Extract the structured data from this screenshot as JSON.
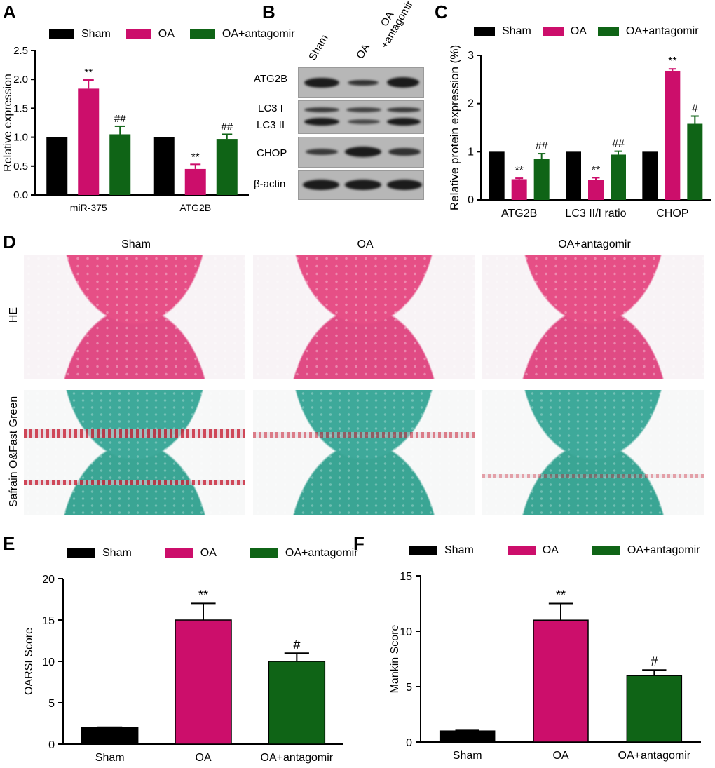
{
  "panels": {
    "A": "A",
    "B": "B",
    "C": "C",
    "D": "D",
    "E": "E",
    "F": "F"
  },
  "colors": {
    "sham": "#000000",
    "oa": "#cc0e6b",
    "antagomir": "#0f6416"
  },
  "legend": {
    "sham": "Sham",
    "oa": "OA",
    "antagomir": "OA+antagomir"
  },
  "chart_data": [
    {
      "id": "A",
      "type": "bar",
      "ylabel": "Relative expression",
      "xlabel": "",
      "ylim": [
        0,
        2.5
      ],
      "yticks": [
        "0.0",
        "0.5",
        "1.0",
        "1.5",
        "2.0",
        "2.5"
      ],
      "categories": [
        "miR-375",
        "ATG2B"
      ],
      "series": [
        {
          "name": "Sham",
          "values": [
            1.0,
            1.0
          ],
          "errors": [
            0,
            0
          ],
          "marks": [
            "",
            ""
          ]
        },
        {
          "name": "OA",
          "values": [
            1.84,
            0.45
          ],
          "errors": [
            0.15,
            0.08
          ],
          "marks": [
            "**",
            "**"
          ]
        },
        {
          "name": "OA+antagomir",
          "values": [
            1.05,
            0.97
          ],
          "errors": [
            0.14,
            0.08
          ],
          "marks": [
            "##",
            "##"
          ]
        }
      ]
    },
    {
      "id": "C",
      "type": "bar",
      "ylabel": "Relative protein expression (%)",
      "xlabel": "",
      "ylim": [
        0,
        3
      ],
      "yticks": [
        "0",
        "1",
        "2",
        "3"
      ],
      "categories": [
        "ATG2B",
        "LC3 II/I ratio",
        "CHOP"
      ],
      "series": [
        {
          "name": "Sham",
          "values": [
            1.0,
            1.0,
            1.0
          ],
          "errors": [
            0,
            0,
            0
          ],
          "marks": [
            "",
            "",
            ""
          ]
        },
        {
          "name": "OA",
          "values": [
            0.43,
            0.42,
            2.68
          ],
          "errors": [
            0.02,
            0.04,
            0.04
          ],
          "marks": [
            "**",
            "**",
            "**"
          ]
        },
        {
          "name": "OA+antagomir",
          "values": [
            0.85,
            0.94,
            1.58
          ],
          "errors": [
            0.11,
            0.07,
            0.16
          ],
          "marks": [
            "##",
            "##",
            "#"
          ]
        }
      ]
    },
    {
      "id": "E",
      "type": "bar",
      "ylabel": "OARSI Score",
      "xlabel": "",
      "ylim": [
        0,
        20
      ],
      "yticks": [
        "0",
        "5",
        "10",
        "15",
        "20"
      ],
      "categories": [
        "Sham",
        "OA",
        "OA+antagomir"
      ],
      "values": [
        2,
        15,
        10
      ],
      "errors": [
        0.05,
        2,
        1
      ],
      "marks": [
        "",
        "**",
        "#"
      ]
    },
    {
      "id": "F",
      "type": "bar",
      "ylabel": "Mankin Score",
      "xlabel": "",
      "ylim": [
        0,
        15
      ],
      "yticks": [
        "0",
        "5",
        "10",
        "15"
      ],
      "categories": [
        "Sham",
        "OA",
        "OA+antagomir"
      ],
      "values": [
        1,
        11,
        6
      ],
      "errors": [
        0.05,
        1.5,
        0.5
      ],
      "marks": [
        "",
        "**",
        "#"
      ]
    }
  ],
  "blot": {
    "lanes": [
      "Sham",
      "OA",
      "OA\n+antagomir"
    ],
    "rows": [
      "ATG2B",
      "LC3 I",
      "LC3 II",
      "CHOP",
      "β-actin"
    ]
  },
  "histology": {
    "columns": [
      "Sham",
      "OA",
      "OA+antagomir"
    ],
    "rows": [
      "HE",
      "Safrain O&Fast Green"
    ]
  }
}
